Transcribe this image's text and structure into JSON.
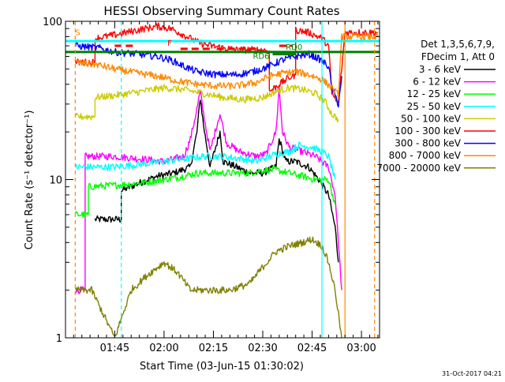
{
  "chart_data": {
    "type": "line",
    "title": "HESSI Observing Summary Count Rates",
    "xlabel": "Start Time (03-Jun-15 01:30:02)",
    "ylabel": "Count Rate (s⁻¹ detector⁻¹)",
    "xlim": [
      "01:30:02",
      "03:05:30"
    ],
    "ylim": [
      1,
      100
    ],
    "yscale": "log",
    "grid": false,
    "x_ticks": [
      "01:45",
      "02:00",
      "02:15",
      "02:30",
      "02:45",
      "03:00"
    ],
    "y_ticks": [
      "1",
      "10",
      "100"
    ],
    "legend": {
      "placement": "right",
      "header": [
        "Det 1,3,5,6,7,9,",
        "FDecim 1, Att 0"
      ]
    },
    "series": [
      {
        "name": "3 - 6 keV",
        "color": "#000000",
        "points": [
          [
            "01:39",
            5.6
          ],
          [
            "01:47",
            5.6
          ],
          [
            "01:47",
            8.5
          ],
          [
            "01:53",
            9.6
          ],
          [
            "01:58",
            10.5
          ],
          [
            "02:03",
            11.0
          ],
          [
            "02:08",
            12.0
          ],
          [
            "02:10",
            20.0
          ],
          [
            "02:11",
            33.0
          ],
          [
            "02:12",
            22.0
          ],
          [
            "02:14",
            12.0
          ],
          [
            "02:17",
            20.0
          ],
          [
            "02:18",
            13.0
          ],
          [
            "02:22",
            12.0
          ],
          [
            "02:26",
            11.0
          ],
          [
            "02:30",
            11.0
          ],
          [
            "02:34",
            12.0
          ],
          [
            "02:35",
            18.0
          ],
          [
            "02:37",
            13.0
          ],
          [
            "02:40",
            13.0
          ],
          [
            "02:44",
            12.0
          ],
          [
            "02:47",
            10.0
          ],
          [
            "02:50",
            8.0
          ],
          [
            "02:52",
            5.0
          ],
          [
            "02:53",
            3.0
          ]
        ]
      },
      {
        "name": "6 - 12 keV",
        "color": "#ff00ff",
        "points": [
          [
            "01:33",
            2.0
          ],
          [
            "01:36",
            2.0
          ],
          [
            "01:36",
            14.0
          ],
          [
            "01:45",
            14.0
          ],
          [
            "01:53",
            13.5
          ],
          [
            "02:00",
            13.0
          ],
          [
            "02:06",
            14.0
          ],
          [
            "02:08",
            18.0
          ],
          [
            "02:10",
            28.0
          ],
          [
            "02:11",
            36.0
          ],
          [
            "02:12",
            26.0
          ],
          [
            "02:14",
            15.0
          ],
          [
            "02:16",
            22.0
          ],
          [
            "02:17",
            26.0
          ],
          [
            "02:19",
            17.0
          ],
          [
            "02:23",
            15.0
          ],
          [
            "02:28",
            14.0
          ],
          [
            "02:31",
            14.5
          ],
          [
            "02:34",
            20.0
          ],
          [
            "02:35",
            38.0
          ],
          [
            "02:36",
            20.0
          ],
          [
            "02:38",
            16.0
          ],
          [
            "02:42",
            15.0
          ],
          [
            "02:46",
            14.0
          ],
          [
            "02:50",
            12.0
          ],
          [
            "02:52",
            8.0
          ],
          [
            "02:54",
            2.0
          ]
        ]
      },
      {
        "name": "12 - 25 keV",
        "color": "#00ff00",
        "points": [
          [
            "01:33",
            6.0
          ],
          [
            "01:37",
            6.0
          ],
          [
            "01:37",
            9.0
          ],
          [
            "01:45",
            9.2
          ],
          [
            "01:53",
            9.5
          ],
          [
            "02:00",
            10.0
          ],
          [
            "02:06",
            10.5
          ],
          [
            "02:10",
            11.0
          ],
          [
            "02:15",
            11.0
          ],
          [
            "02:20",
            11.0
          ],
          [
            "02:26",
            11.0
          ],
          [
            "02:30",
            11.5
          ],
          [
            "02:34",
            11.5
          ],
          [
            "02:38",
            11.0
          ],
          [
            "02:42",
            10.5
          ],
          [
            "02:46",
            10.0
          ],
          [
            "02:50",
            10.0
          ],
          [
            "02:52",
            7.0
          ]
        ]
      },
      {
        "name": "25 - 50 keV",
        "color": "#00ffff",
        "points": [
          [
            "01:33",
            12.0
          ],
          [
            "01:40",
            12.0
          ],
          [
            "01:45",
            12.0
          ],
          [
            "01:53",
            12.5
          ],
          [
            "02:00",
            13.0
          ],
          [
            "02:06",
            13.5
          ],
          [
            "02:12",
            14.0
          ],
          [
            "02:18",
            14.0
          ],
          [
            "02:24",
            13.5
          ],
          [
            "02:28",
            13.0
          ],
          [
            "02:30",
            13.5
          ],
          [
            "02:34",
            14.5
          ],
          [
            "02:38",
            15.0
          ],
          [
            "02:41",
            16.5
          ],
          [
            "02:45",
            16.0
          ],
          [
            "02:48",
            15.0
          ],
          [
            "02:50",
            14.0
          ],
          [
            "02:52",
            10.0
          ]
        ]
      },
      {
        "name": "50 - 100 keV",
        "color": "#cccc00",
        "points": [
          [
            "01:33",
            25.0
          ],
          [
            "01:39",
            25.0
          ],
          [
            "01:39",
            33.0
          ],
          [
            "01:45",
            34.0
          ],
          [
            "01:53",
            36.0
          ],
          [
            "02:00",
            38.0
          ],
          [
            "02:06",
            37.0
          ],
          [
            "02:12",
            35.0
          ],
          [
            "02:18",
            33.0
          ],
          [
            "02:24",
            32.0
          ],
          [
            "02:30",
            33.0
          ],
          [
            "02:34",
            36.0
          ],
          [
            "02:38",
            38.0
          ],
          [
            "02:42",
            37.0
          ],
          [
            "02:46",
            35.0
          ],
          [
            "02:49",
            31.0
          ],
          [
            "02:51",
            26.0
          ],
          [
            "02:53",
            24.0
          ]
        ]
      },
      {
        "name": "100 - 300 keV",
        "color": "#ff0000",
        "points": [
          [
            "01:33",
            55.0
          ],
          [
            "01:39",
            55.0
          ],
          [
            "01:39",
            78.0
          ],
          [
            "01:45",
            82.0
          ],
          [
            "01:52",
            88.0
          ],
          [
            "01:58",
            93.0
          ],
          [
            "02:02",
            90.0
          ],
          [
            "02:06",
            82.0
          ],
          [
            "02:10",
            74.0
          ],
          [
            "02:14",
            70.0
          ],
          [
            "02:18",
            68.0
          ],
          [
            "02:22",
            66.0
          ],
          [
            "02:26",
            66.0
          ],
          [
            "02:30",
            66.0
          ],
          [
            "02:32",
            65.0
          ],
          [
            "02:32",
            36.0
          ],
          [
            "02:35",
            40.0
          ],
          [
            "02:38",
            44.0
          ],
          [
            "02:40",
            46.0
          ],
          [
            "02:40",
            88.0
          ],
          [
            "02:44",
            85.0
          ],
          [
            "02:48",
            78.0
          ],
          [
            "02:50",
            70.0
          ],
          [
            "02:51",
            35.0
          ],
          [
            "02:53",
            30.0
          ],
          [
            "02:55",
            85.0
          ],
          [
            "03:05",
            85.0
          ]
        ]
      },
      {
        "name": "300 - 800 keV",
        "color": "#0000ff",
        "points": [
          [
            "01:33",
            70.0
          ],
          [
            "01:40",
            68.0
          ],
          [
            "01:45",
            64.0
          ],
          [
            "01:52",
            62.0
          ],
          [
            "01:58",
            60.0
          ],
          [
            "02:02",
            57.0
          ],
          [
            "02:06",
            52.0
          ],
          [
            "02:10",
            48.0
          ],
          [
            "02:16",
            46.0
          ],
          [
            "02:22",
            46.0
          ],
          [
            "02:27",
            48.0
          ],
          [
            "02:32",
            52.0
          ],
          [
            "02:36",
            57.0
          ],
          [
            "02:40",
            60.0
          ],
          [
            "02:44",
            62.0
          ],
          [
            "02:47",
            58.0
          ],
          [
            "02:50",
            52.0
          ],
          [
            "02:51",
            38.0
          ],
          [
            "02:53",
            30.0
          ],
          [
            "02:54",
            45.0
          ]
        ]
      },
      {
        "name": "800 - 7000 keV",
        "color": "#ff8800",
        "points": [
          [
            "01:33",
            55.0
          ],
          [
            "01:40",
            53.0
          ],
          [
            "01:45",
            50.0
          ],
          [
            "01:52",
            47.0
          ],
          [
            "01:58",
            45.0
          ],
          [
            "02:04",
            42.0
          ],
          [
            "02:10",
            40.0
          ],
          [
            "02:16",
            39.0
          ],
          [
            "02:22",
            39.0
          ],
          [
            "02:28",
            41.0
          ],
          [
            "02:32",
            45.0
          ],
          [
            "02:36",
            47.0
          ],
          [
            "02:40",
            48.0
          ],
          [
            "02:44",
            46.0
          ],
          [
            "02:48",
            43.0
          ],
          [
            "02:51",
            38.0
          ],
          [
            "02:53",
            34.0
          ],
          [
            "02:54",
            80.0
          ],
          [
            "03:05",
            80.0
          ]
        ]
      },
      {
        "name": "7000 - 20000 keV",
        "color": "#808000",
        "points": [
          [
            "01:33",
            2.0
          ],
          [
            "01:38",
            2.0
          ],
          [
            "01:45",
            1.0
          ],
          [
            "01:50",
            2.0
          ],
          [
            "01:55",
            2.5
          ],
          [
            "02:00",
            3.0
          ],
          [
            "02:04",
            2.6
          ],
          [
            "02:08",
            2.0
          ],
          [
            "02:14",
            2.0
          ],
          [
            "02:20",
            2.0
          ],
          [
            "02:26",
            2.2
          ],
          [
            "02:30",
            2.8
          ],
          [
            "02:34",
            3.5
          ],
          [
            "02:38",
            3.8
          ],
          [
            "02:42",
            4.0
          ],
          [
            "02:45",
            4.2
          ],
          [
            "02:48",
            3.8
          ],
          [
            "02:50",
            3.0
          ],
          [
            "02:52",
            2.0
          ],
          [
            "02:54",
            1.0
          ]
        ]
      }
    ],
    "reference_lines": [
      {
        "color": "#00ffff",
        "y": 75,
        "x": [
          "01:30:02",
          "03:05:30"
        ],
        "style": "solid"
      },
      {
        "color": "#008000",
        "y": 64,
        "x": [
          "01:30:02",
          "03:05:30"
        ],
        "style": "solid"
      }
    ],
    "vertical_markers": [
      {
        "x": "01:33",
        "color": "#ff8800",
        "style": "dashed"
      },
      {
        "x": "01:47",
        "color": "#00ffff",
        "style": "dashed"
      },
      {
        "x": "02:48",
        "color": "#00ffff",
        "style": "solid"
      },
      {
        "x": "02:55",
        "color": "#ff8800",
        "style": "solid"
      },
      {
        "x": "03:04",
        "color": "#ff8800",
        "style": "dashed"
      }
    ],
    "annotations": [
      {
        "text": "S",
        "color": "#ff8800",
        "x": "01:33",
        "y": 82
      },
      {
        "text": "F",
        "color": "#ff0000",
        "x": "02:01",
        "y": 70
      },
      {
        "text": "RD6",
        "color": "#008000",
        "x": "02:27",
        "y": 58
      },
      {
        "text": "RD0",
        "color": "#008000",
        "x": "02:37",
        "y": 66
      }
    ],
    "segments": [
      {
        "color": "#ff0000",
        "y": 70,
        "x": [
          "01:45",
          "01:51"
        ]
      },
      {
        "color": "#ff0000",
        "y": 67,
        "x": [
          "02:05",
          "02:14"
        ]
      },
      {
        "color": "#ff0000",
        "y": 67,
        "x": [
          "02:16",
          "02:28"
        ]
      },
      {
        "color": "#ff0000",
        "y": 70,
        "x": [
          "02:35",
          "02:39"
        ]
      },
      {
        "color": "#008000",
        "y": 62,
        "x": [
          "02:33",
          "02:40"
        ]
      }
    ]
  },
  "footer": {
    "timestamp": "31-Oct-2017 04:21"
  }
}
